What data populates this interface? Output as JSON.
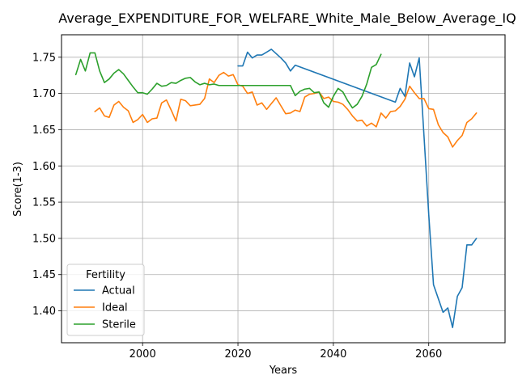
{
  "chart_data": {
    "type": "line",
    "title": "Average_EXPENDITURE_FOR_WELFARE_White_Male_Below_Average_IQ",
    "xlabel": "Years",
    "ylabel": "Score(1-3)",
    "xlim": [
      1983,
      2076
    ],
    "ylim": [
      1.356,
      1.781
    ],
    "xticks": [
      2000,
      2020,
      2040,
      2060
    ],
    "yticks": [
      1.4,
      1.45,
      1.5,
      1.55,
      1.6,
      1.65,
      1.7,
      1.75
    ],
    "ytick_labels": [
      "1.40",
      "1.45",
      "1.50",
      "1.55",
      "1.60",
      "1.65",
      "1.70",
      "1.75"
    ],
    "grid": true,
    "legend": {
      "title": "Fertility",
      "placement": "lower-left"
    },
    "series": [
      {
        "name": "Actual",
        "color": "#1f77b4",
        "x": [
          2020,
          2021,
          2022,
          2023,
          2024,
          2025,
          2026,
          2027,
          2028,
          2029,
          2030,
          2031,
          2032,
          2053,
          2054,
          2055,
          2056,
          2057,
          2058,
          2059,
          2060,
          2061,
          2062,
          2063,
          2064,
          2065,
          2066,
          2067,
          2068,
          2069,
          2070
        ],
        "y": [
          1.738,
          1.738,
          1.757,
          1.749,
          1.753,
          1.753,
          1.757,
          1.761,
          1.755,
          1.749,
          1.742,
          1.731,
          1.739,
          1.688,
          1.707,
          1.696,
          1.742,
          1.723,
          1.749,
          1.642,
          1.533,
          1.436,
          1.417,
          1.398,
          1.404,
          1.377,
          1.42,
          1.432,
          1.491,
          1.491,
          1.5
        ]
      },
      {
        "name": "Ideal",
        "color": "#ff7f0e",
        "x": [
          1990,
          1991,
          1992,
          1993,
          1994,
          1995,
          1996,
          1997,
          1998,
          1999,
          2000,
          2001,
          2002,
          2003,
          2004,
          2005,
          2006,
          2007,
          2008,
          2009,
          2010,
          2011,
          2012,
          2013,
          2014,
          2015,
          2016,
          2017,
          2018,
          2019,
          2020,
          2021,
          2022,
          2023,
          2024,
          2025,
          2026,
          2027,
          2028,
          2029,
          2030,
          2031,
          2032,
          2033,
          2034,
          2035,
          2036,
          2037,
          2038,
          2039,
          2040,
          2041,
          2042,
          2043,
          2044,
          2045,
          2046,
          2047,
          2048,
          2049,
          2050,
          2051,
          2052,
          2053,
          2054,
          2055,
          2056,
          2057,
          2058,
          2059,
          2060,
          2061,
          2062,
          2063,
          2064,
          2065,
          2066,
          2067,
          2068,
          2069,
          2070
        ],
        "y": [
          1.675,
          1.68,
          1.669,
          1.667,
          1.684,
          1.689,
          1.681,
          1.676,
          1.66,
          1.664,
          1.671,
          1.66,
          1.665,
          1.666,
          1.687,
          1.691,
          1.677,
          1.662,
          1.692,
          1.69,
          1.683,
          1.684,
          1.685,
          1.693,
          1.72,
          1.715,
          1.725,
          1.729,
          1.724,
          1.726,
          1.712,
          1.71,
          1.7,
          1.702,
          1.684,
          1.687,
          1.678,
          1.686,
          1.694,
          1.683,
          1.672,
          1.673,
          1.677,
          1.675,
          1.695,
          1.699,
          1.7,
          1.702,
          1.693,
          1.695,
          1.689,
          1.688,
          1.685,
          1.678,
          1.669,
          1.662,
          1.663,
          1.655,
          1.659,
          1.654,
          1.673,
          1.666,
          1.675,
          1.676,
          1.682,
          1.692,
          1.71,
          1.701,
          1.693,
          1.693,
          1.679,
          1.678,
          1.657,
          1.646,
          1.64,
          1.626,
          1.635,
          1.642,
          1.66,
          1.665,
          1.673
        ]
      },
      {
        "name": "Sterile",
        "color": "#2ca02c",
        "x": [
          1986,
          1987,
          1988,
          1989,
          1990,
          1991,
          1992,
          1993,
          1994,
          1995,
          1996,
          1997,
          1998,
          1999,
          2000,
          2001,
          2002,
          2003,
          2004,
          2005,
          2006,
          2007,
          2008,
          2009,
          2010,
          2011,
          2012,
          2013,
          2014,
          2015,
          2016,
          2017,
          2018,
          2019,
          2020,
          2031,
          2032,
          2033,
          2034,
          2035,
          2036,
          2037,
          2038,
          2039,
          2040,
          2041,
          2042,
          2043,
          2044,
          2045,
          2046,
          2047,
          2048,
          2049,
          2050
        ],
        "y": [
          1.726,
          1.747,
          1.731,
          1.756,
          1.756,
          1.731,
          1.715,
          1.72,
          1.728,
          1.733,
          1.727,
          1.718,
          1.709,
          1.701,
          1.701,
          1.699,
          1.706,
          1.714,
          1.71,
          1.711,
          1.715,
          1.714,
          1.718,
          1.721,
          1.722,
          1.716,
          1.712,
          1.714,
          1.712,
          1.713,
          1.711,
          1.711,
          1.711,
          1.711,
          1.711,
          1.711,
          1.697,
          1.703,
          1.706,
          1.707,
          1.701,
          1.702,
          1.687,
          1.681,
          1.696,
          1.707,
          1.702,
          1.69,
          1.68,
          1.685,
          1.696,
          1.713,
          1.736,
          1.74,
          1.754
        ]
      }
    ]
  }
}
